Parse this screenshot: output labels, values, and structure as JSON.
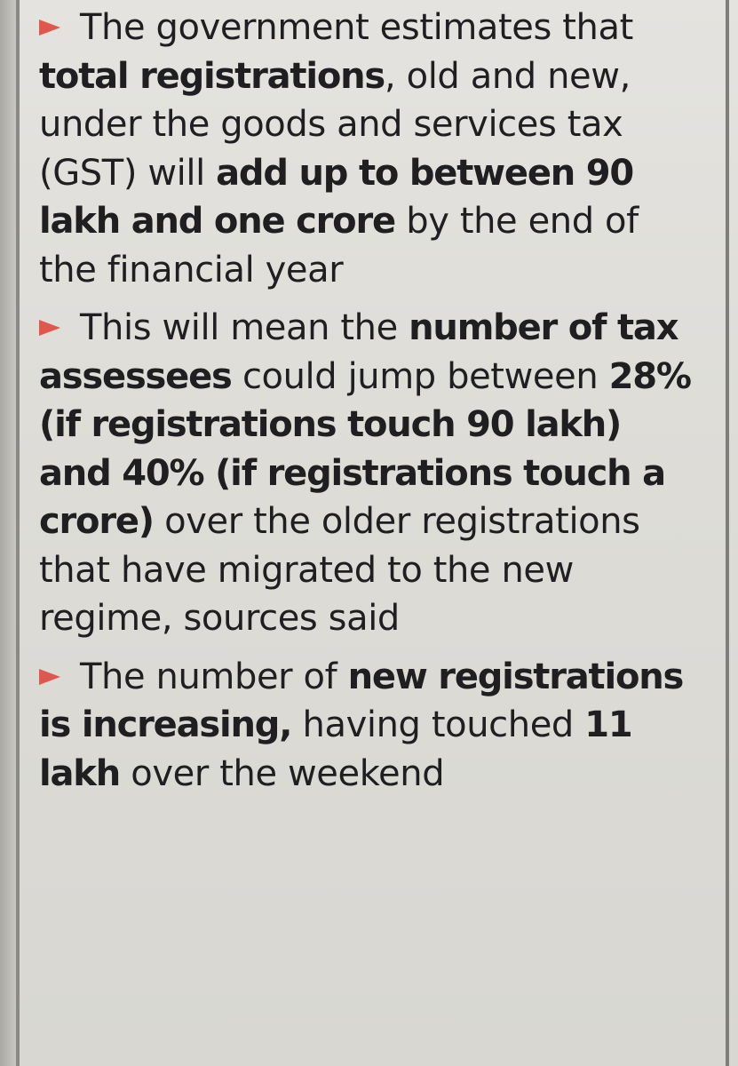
{
  "bullets": [
    {
      "segments": [
        {
          "text": "The government estimates that ",
          "bold": false
        },
        {
          "text": "total registrations",
          "bold": true
        },
        {
          "text": ", old and new, under the goods and services tax (GST) will ",
          "bold": false
        },
        {
          "text": "add up to between 90 lakh and one crore",
          "bold": true
        },
        {
          "text": " by the end of the financial year",
          "bold": false
        }
      ]
    },
    {
      "segments": [
        {
          "text": "This will mean the ",
          "bold": false
        },
        {
          "text": "number of tax assessees",
          "bold": true
        },
        {
          "text": " could jump between ",
          "bold": false
        },
        {
          "text": "28% (if registrations touch 90 lakh) and 40% (if registrations touch a crore)",
          "bold": true
        },
        {
          "text": " over the older registrations that have migrated to the new regime, sources said",
          "bold": false
        }
      ]
    },
    {
      "segments": [
        {
          "text": "The number of ",
          "bold": false
        },
        {
          "text": "new registrations is increasing,",
          "bold": true
        },
        {
          "text": " having touched ",
          "bold": false
        },
        {
          "text": "11 lakh",
          "bold": true
        },
        {
          "text": " over the weekend",
          "bold": false
        }
      ]
    }
  ],
  "colors": {
    "arrow": "#e0584d",
    "text": "#1f1f22",
    "paper": "#e0dfdb"
  }
}
